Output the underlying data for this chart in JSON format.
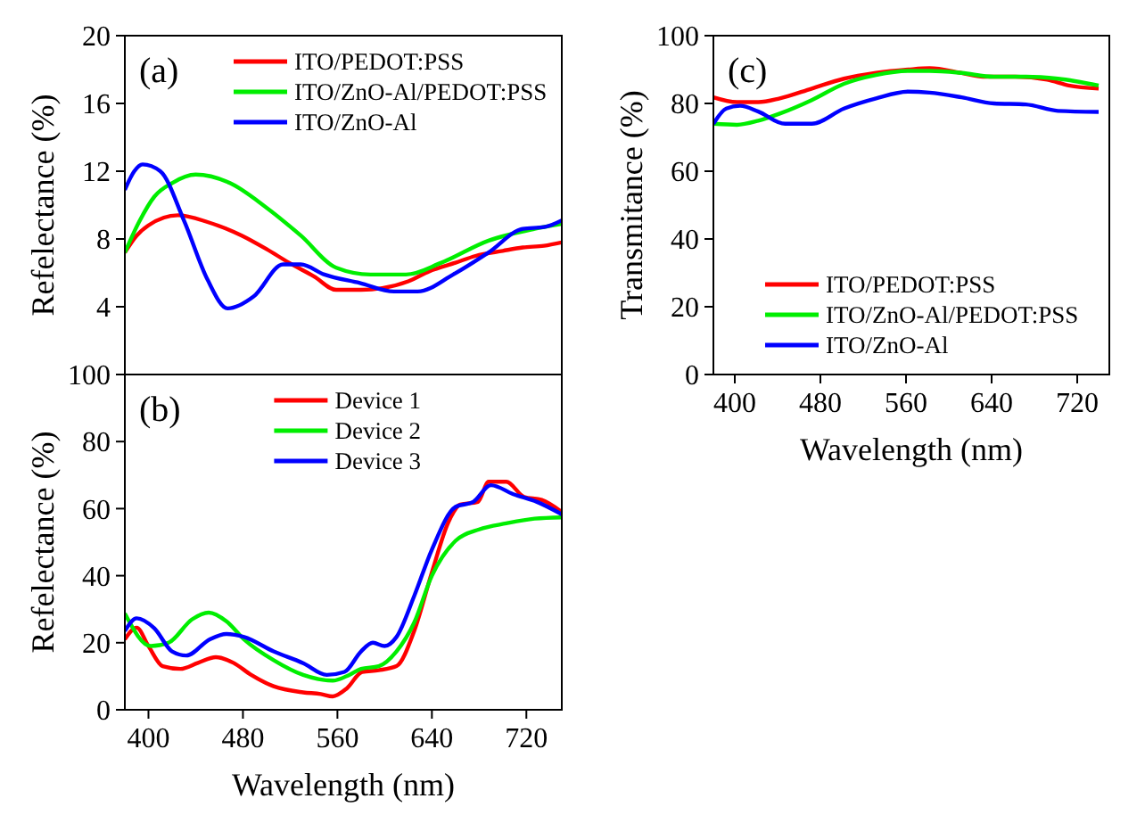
{
  "chart_data": [
    {
      "type": "line",
      "ylabel": "Refelectance (%)",
      "annotations": [
        "(a)"
      ],
      "xlim": [
        380,
        750
      ],
      "ylim": [
        0,
        20
      ],
      "yticks": [
        4,
        8,
        12,
        16,
        20
      ],
      "tick_labels": "y",
      "grid": false,
      "legend": "top right",
      "line_style": "solid",
      "marker": "none",
      "series": [
        {
          "name": "ITO/PEDOT:PSS",
          "color": "#ff0000",
          "x": [
            380,
            390,
            400,
            425,
            450,
            479,
            500,
            519,
            540,
            559,
            580,
            598,
            620,
            638,
            660,
            677,
            700,
            717,
            735,
            750
          ],
          "values": [
            7.2,
            8.2,
            8.8,
            9.4,
            9.0,
            8.2,
            7.4,
            6.6,
            5.8,
            5.0,
            5.0,
            5.1,
            5.5,
            6.1,
            6.6,
            7.0,
            7.3,
            7.5,
            7.6,
            7.8
          ]
        },
        {
          "name": "ITO/ZnO-Al/PEDOT:PSS",
          "color": "#00ee00",
          "x": [
            380,
            392,
            405,
            420,
            440,
            469,
            499,
            529,
            559,
            588,
            618,
            648,
            688,
            727,
            750
          ],
          "values": [
            7.2,
            9.0,
            10.5,
            11.3,
            11.8,
            11.3,
            9.9,
            8.2,
            6.3,
            5.9,
            5.9,
            6.6,
            7.9,
            8.6,
            8.9
          ]
        },
        {
          "name": "ITO/ZnO-Al",
          "color": "#0000ff",
          "x": [
            380,
            388,
            395,
            410,
            430,
            450,
            467,
            489,
            514,
            529,
            549,
            579,
            608,
            628,
            658,
            688,
            717,
            735,
            750
          ],
          "values": [
            10.9,
            12.0,
            12.4,
            12.0,
            9.1,
            5.6,
            3.9,
            4.6,
            6.5,
            6.5,
            5.9,
            5.4,
            4.9,
            4.9,
            5.9,
            7.2,
            8.6,
            8.7,
            9.1
          ]
        }
      ]
    },
    {
      "type": "line",
      "xlabel": "Wavelength (nm)",
      "ylabel": "Refelectance (%)",
      "annotations": [
        "(b)"
      ],
      "xlim": [
        380,
        750
      ],
      "ylim": [
        0,
        100
      ],
      "xticks": [
        400,
        480,
        560,
        640,
        720
      ],
      "yticks": [
        0,
        20,
        40,
        60,
        80,
        100
      ],
      "grid": false,
      "legend": "top",
      "line_style": "solid",
      "marker": "none",
      "series": [
        {
          "name": "Device 1",
          "color": "#ff0000",
          "x": [
            380,
            390,
            400,
            412,
            427,
            442,
            457,
            472,
            487,
            506,
            531,
            546,
            556,
            568,
            581,
            595,
            610,
            625,
            640,
            654,
            664,
            679,
            688,
            703,
            718,
            733,
            750
          ],
          "values": [
            21,
            24.5,
            19,
            13,
            12.2,
            14,
            15.7,
            14,
            10.4,
            7,
            5.2,
            4.7,
            4.0,
            6.4,
            11.3,
            11.8,
            13,
            23.5,
            41,
            56,
            61.2,
            62,
            68,
            68,
            63.5,
            62.6,
            59
          ]
        },
        {
          "name": "Device 2",
          "color": "#00ee00",
          "x": [
            380,
            402,
            417,
            437,
            451,
            466,
            481,
            506,
            531,
            556,
            570,
            580,
            595,
            610,
            625,
            640,
            660,
            680,
            703,
            727,
            750
          ],
          "values": [
            28.7,
            19,
            20,
            27,
            29,
            26.4,
            21,
            14.8,
            10.4,
            8.7,
            10.4,
            12.2,
            13,
            17.4,
            26,
            40,
            50.4,
            53.8,
            55.6,
            57,
            57.4
          ]
        },
        {
          "name": "Device 3",
          "color": "#0000ff",
          "x": [
            380,
            390,
            405,
            420,
            432,
            452,
            466,
            481,
            506,
            531,
            551,
            566,
            580,
            590,
            600,
            610,
            625,
            640,
            660,
            675,
            690,
            709,
            729,
            750
          ],
          "values": [
            23.5,
            27.3,
            24.3,
            17.4,
            16.2,
            21,
            22.6,
            21.7,
            17.4,
            13.9,
            10.4,
            11.3,
            17.4,
            20,
            19,
            21.7,
            33.9,
            47.8,
            60.5,
            62,
            67,
            64.3,
            62,
            58.3
          ]
        }
      ]
    },
    {
      "type": "line",
      "xlabel": "Wavelength (nm)",
      "ylabel": "Transmitance (%)",
      "annotations": [
        "(c)"
      ],
      "xlim": [
        380,
        750
      ],
      "ylim": [
        0,
        100
      ],
      "xticks": [
        400,
        480,
        560,
        640,
        720
      ],
      "yticks": [
        0,
        20,
        40,
        60,
        80,
        100
      ],
      "grid": false,
      "legend": "bottom",
      "line_style": "solid",
      "marker": "none",
      "series": [
        {
          "name": "ITO/PEDOT:PSS",
          "color": "#ff0000",
          "x": [
            380,
            402,
            422,
            442,
            472,
            502,
            532,
            562,
            582,
            612,
            632,
            662,
            692,
            712,
            740
          ],
          "values": [
            81.8,
            80.4,
            80.4,
            81.5,
            84.4,
            87.3,
            89,
            90,
            90.4,
            89,
            87.9,
            87.9,
            87,
            85.3,
            84.4
          ]
        },
        {
          "name": "ITO/ZnO-Al/PEDOT:PSS",
          "color": "#00ee00",
          "x": [
            380,
            402,
            422,
            442,
            472,
            502,
            532,
            562,
            582,
            612,
            642,
            672,
            702,
            740
          ],
          "values": [
            74,
            73.7,
            74.9,
            77,
            81,
            85.8,
            88.4,
            89.6,
            89.6,
            89,
            87.9,
            87.9,
            87.3,
            85.3
          ]
        },
        {
          "name": "ITO/ZnO-Al",
          "color": "#0000ff",
          "x": [
            380,
            392,
            405,
            422,
            447,
            472,
            502,
            532,
            562,
            582,
            612,
            642,
            672,
            702,
            740
          ],
          "values": [
            74,
            78.5,
            79.3,
            77.6,
            74,
            74,
            78.5,
            81.5,
            83.5,
            83.2,
            81.8,
            80,
            79.7,
            77.8,
            77.5
          ]
        }
      ]
    }
  ]
}
